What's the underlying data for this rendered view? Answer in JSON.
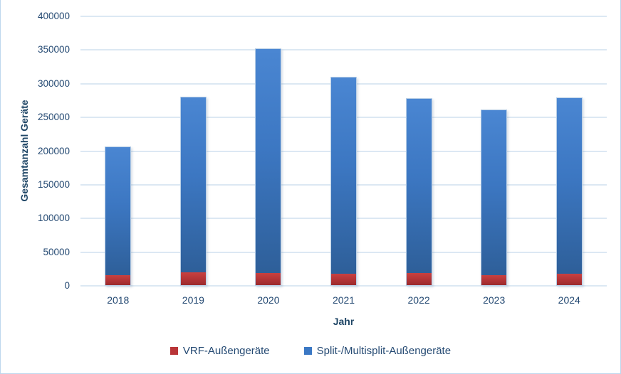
{
  "frame": {
    "background_color": "#FFFFFF",
    "border_color": "#BDD7EE"
  },
  "chart_data": {
    "type": "bar",
    "stacked": true,
    "xlabel": "Jahr",
    "ylabel": "Gesamtanzahl Geräte",
    "categories": [
      "2018",
      "2019",
      "2020",
      "2021",
      "2022",
      "2023",
      "2024"
    ],
    "series": [
      {
        "name": "VRF-Außengeräte",
        "color": "#B93538",
        "values": [
          15000,
          19000,
          18000,
          17000,
          18000,
          15000,
          17000
        ]
      },
      {
        "name": "Split-/Multisplit-Außengeräte",
        "color": "#3B78C4",
        "values": [
          192000,
          262000,
          334000,
          293000,
          261000,
          247000,
          263000
        ]
      }
    ],
    "stack_totals": [
      207000,
      281000,
      352000,
      310000,
      279000,
      262000,
      280000
    ],
    "ylim": [
      0,
      400000
    ],
    "ytick_step": 50000,
    "yticks": [
      "400000",
      "350000",
      "300000",
      "250000",
      "200000",
      "150000",
      "100000",
      "50000",
      "0"
    ],
    "grid": true,
    "grid_color": "#DCE8F3",
    "text_color": "#254A73",
    "legend_position": "bottom"
  }
}
